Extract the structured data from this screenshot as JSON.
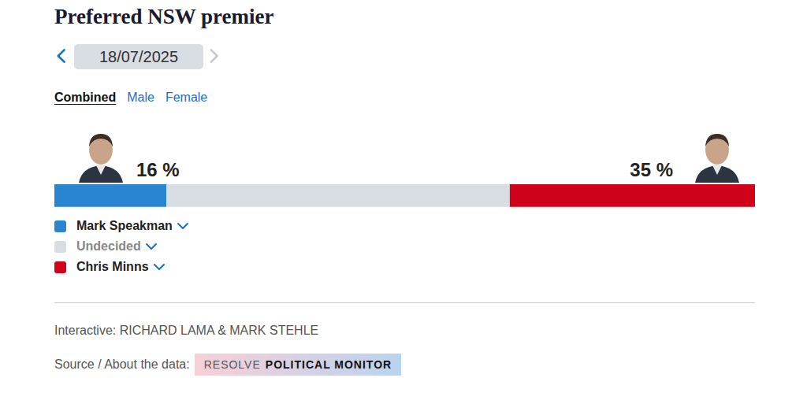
{
  "chart_data": {
    "type": "bar",
    "title": "Preferred NSW premier",
    "orientation": "horizontal",
    "stacked": true,
    "data_labels": true,
    "tick_labels": false,
    "grid": false,
    "legend": "bottom",
    "xlim": [
      0,
      100
    ],
    "series": [
      {
        "name": "Mark Speakman",
        "color": "#2a85d0",
        "values": [
          16
        ],
        "value_labels": [
          "16 %"
        ]
      },
      {
        "name": "Undecided",
        "color": "#d8dce3",
        "values": [
          49
        ]
      },
      {
        "name": "Chris Minns",
        "color": "#d0021b",
        "values": [
          35
        ],
        "value_labels": [
          "35 %"
        ]
      }
    ]
  },
  "header": {
    "date": "18/07/2025",
    "tabs": [
      "Combined",
      "Male",
      "Female"
    ],
    "selected_tab": "Combined"
  },
  "footer": {
    "credit": "Interactive: RICHARD LAMA & MARK STEHLE",
    "source_label": "Source / About the data:",
    "source_badge": [
      "RESOLVE",
      "POLITICAL MONITOR"
    ]
  }
}
